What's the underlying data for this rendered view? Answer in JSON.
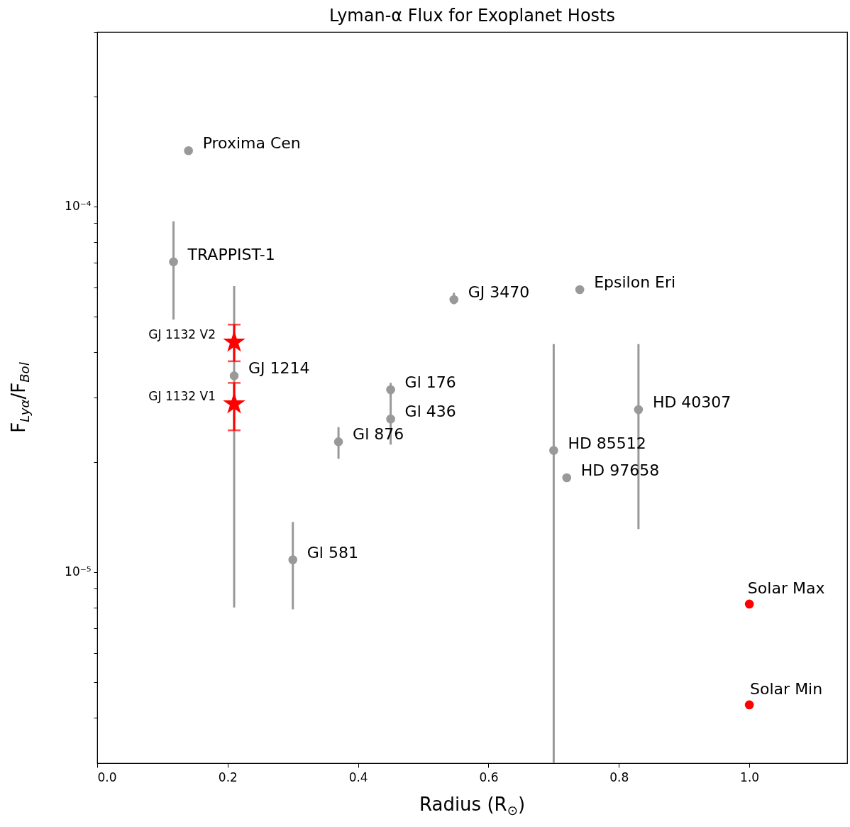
{
  "chart_data": {
    "type": "scatter",
    "title": "Lyman-α Flux for Exoplanet Hosts",
    "xlabel": "Radius (R$_{⊙}$)",
    "ylabel": "F$_{Lyα}$/F$_{Bol}$",
    "log": "y",
    "grid": false,
    "xlim": [
      0,
      1.15
    ],
    "ylim": [
      3e-06,
      0.0003
    ],
    "xticks": [
      {
        "value": 0,
        "label": "0.0"
      },
      {
        "value": 0.2,
        "label": "0.2"
      },
      {
        "value": 0.4,
        "label": "0.4"
      },
      {
        "value": 0.6,
        "label": "0.6"
      },
      {
        "value": 0.8,
        "label": "0.8"
      },
      {
        "value": 1,
        "label": "1.0"
      }
    ],
    "yticks": [
      {
        "value": 4e-06,
        "label": null
      },
      {
        "value": 5e-06,
        "label": null
      },
      {
        "value": 6e-06,
        "label": null
      },
      {
        "value": 7e-06,
        "label": null
      },
      {
        "value": 8e-06,
        "label": null
      },
      {
        "value": 9e-06,
        "label": null
      },
      {
        "value": 1e-05,
        "label": "10⁻⁵"
      },
      {
        "value": 2e-05,
        "label": null
      },
      {
        "value": 3e-05,
        "label": null
      },
      {
        "value": 4e-05,
        "label": null
      },
      {
        "value": 5e-05,
        "label": null
      },
      {
        "value": 6e-05,
        "label": null
      },
      {
        "value": 7e-05,
        "label": null
      },
      {
        "value": 8e-05,
        "label": null
      },
      {
        "value": 9e-05,
        "label": null
      },
      {
        "value": 0.0001,
        "label": "10⁻⁴"
      },
      {
        "value": 0.0002,
        "label": null
      },
      {
        "value": 0.0003,
        "label": null
      }
    ],
    "series": [
      {
        "color": "#999999",
        "marker": "circle",
        "x": [
          0.14,
          0.117,
          0.21,
          0.3,
          0.37,
          0.45,
          0.45,
          0.547,
          0.74,
          0.7,
          0.72,
          0.83
        ],
        "values": [
          0.000142,
          7.05e-05,
          3.44e-05,
          1.08e-05,
          2.27e-05,
          3.15e-05,
          2.62e-05,
          5.56e-05,
          5.92e-05,
          2.15e-05,
          1.81e-05,
          2.78e-05
        ],
        "errors": [
          null,
          [
            4.9e-05,
            9.1e-05
          ],
          [
            8e-06,
            6.05e-05
          ],
          [
            7.9e-06,
            1.37e-05
          ],
          [
            2.04e-05,
            2.49e-05
          ],
          [
            3e-05,
            3.29e-05
          ],
          [
            2.23e-05,
            3.08e-05
          ],
          [
            5.4e-05,
            5.8e-05
          ],
          null,
          [
            3e-06,
            4.2e-05
          ],
          null,
          [
            1.31e-05,
            4.2e-05
          ]
        ]
      },
      {
        "color": "#ff0000",
        "marker": "star",
        "x": [
          0.21,
          0.21
        ],
        "values": [
          4.25e-05,
          2.88e-05
        ],
        "errors": [
          [
            3.77e-05,
            4.75e-05
          ],
          [
            2.44e-05,
            3.29e-05
          ]
        ]
      },
      {
        "color": "#ff0000",
        "marker": "circle",
        "x": [
          1.0,
          1.0
        ],
        "values": [
          8.17e-06,
          4.33e-06
        ]
      }
    ],
    "annotations": [
      {
        "text": "Proxima Cen",
        "x": 0.14,
        "y": 0.000142
      },
      {
        "text": "TRAPPIST-1",
        "x": 0.117,
        "y": 7.05e-05
      },
      {
        "text": "GJ 1214",
        "x": 0.21,
        "y": 3.44e-05
      },
      {
        "text": "GJ 1132 V2",
        "x": 0.21,
        "y": 4.25e-05
      },
      {
        "text": "GJ 1132 V1",
        "x": 0.21,
        "y": 2.88e-05
      },
      {
        "text": "Gl 581",
        "x": 0.3,
        "y": 1.08e-05
      },
      {
        "text": "Gl 876",
        "x": 0.37,
        "y": 2.27e-05
      },
      {
        "text": "Gl 176",
        "x": 0.45,
        "y": 3.15e-05
      },
      {
        "text": "Gl 436",
        "x": 0.45,
        "y": 2.62e-05
      },
      {
        "text": "GJ 3470",
        "x": 0.547,
        "y": 5.56e-05
      },
      {
        "text": "Epsilon Eri",
        "x": 0.74,
        "y": 5.92e-05
      },
      {
        "text": "HD 85512",
        "x": 0.7,
        "y": 2.15e-05
      },
      {
        "text": "HD 97658",
        "x": 0.72,
        "y": 1.81e-05
      },
      {
        "text": "HD 40307",
        "x": 0.83,
        "y": 2.78e-05
      },
      {
        "text": "Solar Max",
        "x": 1.0,
        "y": 8.17e-06
      },
      {
        "text": "Solar Min",
        "x": 1.0,
        "y": 4.33e-06
      }
    ]
  }
}
